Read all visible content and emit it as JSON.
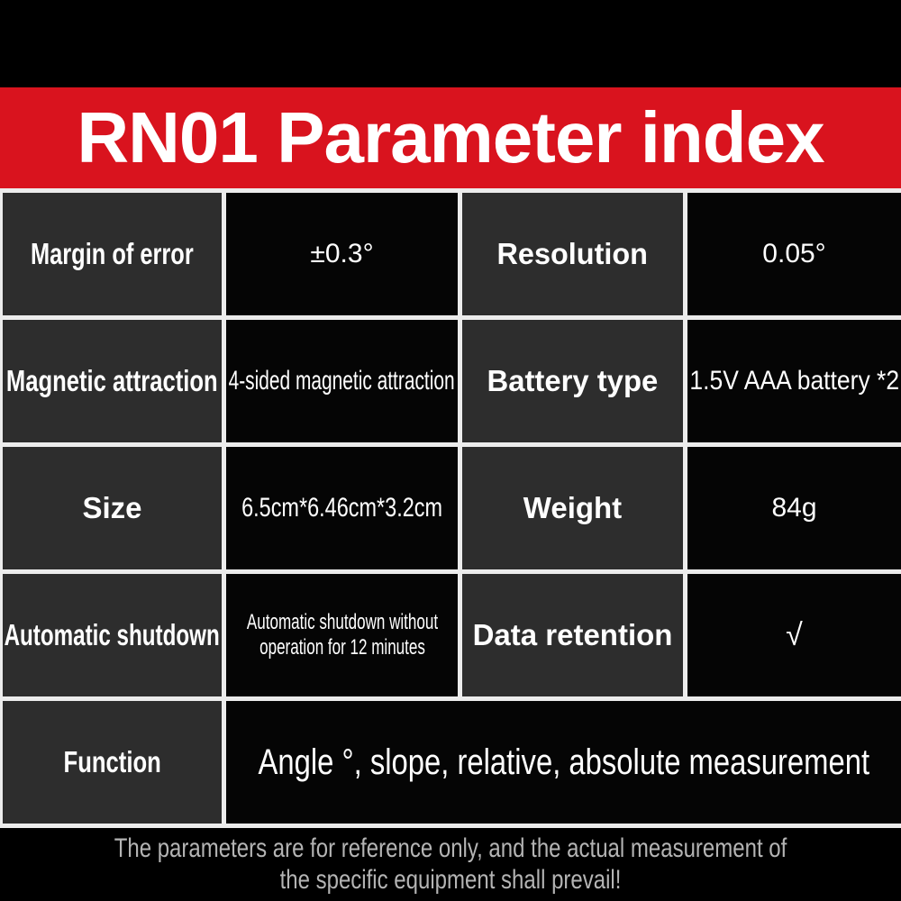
{
  "header": {
    "title": "RN01  Parameter index"
  },
  "table": {
    "rows": [
      {
        "l1": "Margin of error",
        "v1": "±0.3°",
        "l2": "Resolution",
        "v2": "0.05°"
      },
      {
        "l1": "Magnetic attraction",
        "v1": "4-sided magnetic attraction",
        "l2": "Battery type",
        "v2": "1.5V AAA battery *2"
      },
      {
        "l1": "Size",
        "v1": "6.5cm*6.46cm*3.2cm",
        "l2": "Weight",
        "v2": "84g"
      },
      {
        "l1": "Automatic shutdown",
        "v1": "Automatic shutdown without operation for 12 minutes",
        "l2": "Data retention",
        "v2": "√"
      },
      {
        "l1": "Function",
        "v1": "Angle °, slope, relative, absolute measurement"
      }
    ]
  },
  "footer": {
    "line1": "The parameters are for reference only, and the actual measurement of",
    "line2": "the specific equipment shall prevail!"
  },
  "colors": {
    "accent_red": "#d9131e",
    "label_cell_bg": "#2d2d2d",
    "value_cell_bg": "#050505",
    "grid_line": "#ececec",
    "footer_text": "#b4b4b4",
    "table_text": "#ffffff"
  }
}
